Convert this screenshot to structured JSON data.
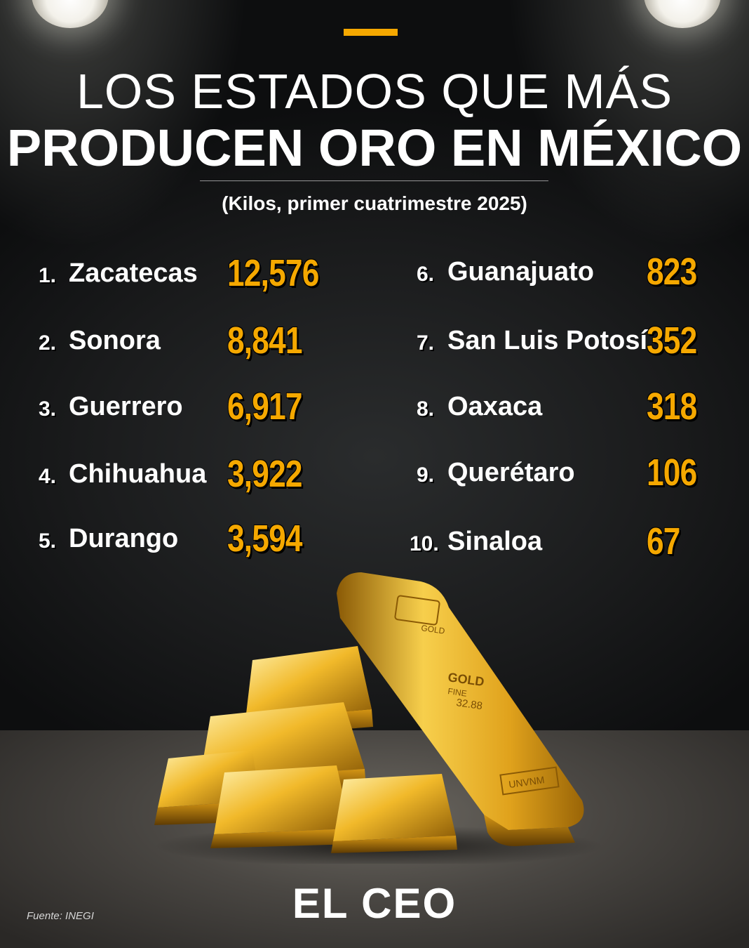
{
  "header": {
    "title_line1": "LOS ESTADOS QUE MÁS",
    "title_line2": "PRODUCEN ORO EN MÉXICO",
    "subtitle": "(Kilos, primer cuatrimestre 2025)"
  },
  "ranking": [
    {
      "rank": "1.",
      "state": "Zacatecas",
      "value": "12,576"
    },
    {
      "rank": "2.",
      "state": "Sonora",
      "value": "8,841"
    },
    {
      "rank": "3.",
      "state": "Guerrero",
      "value": "6,917"
    },
    {
      "rank": "4.",
      "state": "Chihuahua",
      "value": "3,922"
    },
    {
      "rank": "5.",
      "state": "Durango",
      "value": "3,594"
    },
    {
      "rank": "6.",
      "state": "Guanajuato",
      "value": "823"
    },
    {
      "rank": "7.",
      "state": "San Luis Potosí",
      "value": "352"
    },
    {
      "rank": "8.",
      "state": "Oaxaca",
      "value": "318"
    },
    {
      "rank": "9.",
      "state": "Querétaro",
      "value": "106"
    },
    {
      "rank": "10.",
      "state": "Sinaloa",
      "value": "67"
    }
  ],
  "gold_bar_engraving": {
    "top": "GOLD",
    "mid1": "GOLD",
    "mid2": "FINE",
    "mid3": "32.88",
    "bottom": "UNVNM"
  },
  "footer": {
    "logo": "EL CEO",
    "source": "Fuente: INEGI"
  },
  "colors": {
    "accent": "#f5a800",
    "background": "#121314",
    "text": "#ffffff"
  }
}
